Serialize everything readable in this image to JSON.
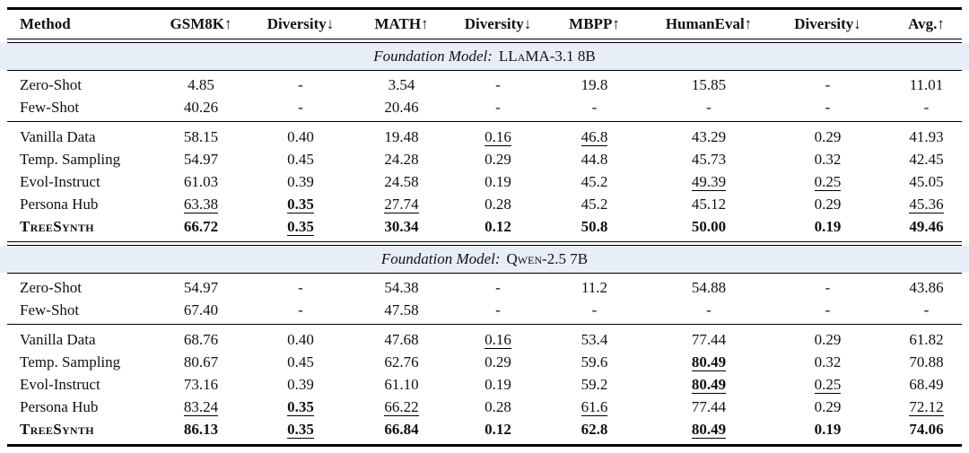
{
  "colors": {
    "band_bg": "#e8eef8",
    "rule": "#000000",
    "text": "#111111"
  },
  "table": {
    "columns": [
      "Method",
      "GSM8K↑",
      "Diversity↓",
      "MATH↑",
      "Diversity↓",
      "MBPP↑",
      "HumanEval↑",
      "Diversity↓",
      "Avg.↑"
    ],
    "sections": [
      {
        "banner_prefix": "Foundation Model:",
        "banner_model": "LLaMA-3.1 8B",
        "baseline_rows": [
          {
            "label": "Zero-Shot",
            "label_sc": false,
            "cells": [
              [
                "4.85",
                ""
              ],
              [
                "-",
                ""
              ],
              [
                "3.54",
                ""
              ],
              [
                "-",
                ""
              ],
              [
                "19.8",
                ""
              ],
              [
                "15.85",
                ""
              ],
              [
                "-",
                ""
              ],
              [
                "11.01",
                ""
              ]
            ]
          },
          {
            "label": "Few-Shot",
            "label_sc": false,
            "cells": [
              [
                "40.26",
                ""
              ],
              [
                "-",
                ""
              ],
              [
                "20.46",
                ""
              ],
              [
                "-",
                ""
              ],
              [
                "-",
                ""
              ],
              [
                "-",
                ""
              ],
              [
                "-",
                ""
              ],
              [
                "-",
                ""
              ]
            ]
          }
        ],
        "method_rows": [
          {
            "label": "Vanilla Data",
            "label_sc": false,
            "cells": [
              [
                "58.15",
                ""
              ],
              [
                "0.40",
                ""
              ],
              [
                "19.48",
                ""
              ],
              [
                "0.16",
                "u"
              ],
              [
                "46.8",
                "u"
              ],
              [
                "43.29",
                ""
              ],
              [
                "0.29",
                ""
              ],
              [
                "41.93",
                ""
              ]
            ]
          },
          {
            "label": "Temp. Sampling",
            "label_sc": false,
            "cells": [
              [
                "54.97",
                ""
              ],
              [
                "0.45",
                ""
              ],
              [
                "24.28",
                ""
              ],
              [
                "0.29",
                ""
              ],
              [
                "44.8",
                ""
              ],
              [
                "45.73",
                ""
              ],
              [
                "0.32",
                ""
              ],
              [
                "42.45",
                ""
              ]
            ]
          },
          {
            "label": "Evol-Instruct",
            "label_sc": false,
            "cells": [
              [
                "61.03",
                ""
              ],
              [
                "0.39",
                ""
              ],
              [
                "24.58",
                ""
              ],
              [
                "0.19",
                ""
              ],
              [
                "45.2",
                ""
              ],
              [
                "49.39",
                "u"
              ],
              [
                "0.25",
                "u"
              ],
              [
                "45.05",
                ""
              ]
            ]
          },
          {
            "label": "Persona Hub",
            "label_sc": false,
            "cells": [
              [
                "63.38",
                "u"
              ],
              [
                "0.35",
                "bu"
              ],
              [
                "27.74",
                "u"
              ],
              [
                "0.28",
                ""
              ],
              [
                "45.2",
                ""
              ],
              [
                "45.12",
                ""
              ],
              [
                "0.29",
                ""
              ],
              [
                "45.36",
                "u"
              ]
            ]
          },
          {
            "label": "TreeSynth",
            "label_sc": true,
            "cells": [
              [
                "66.72",
                "b"
              ],
              [
                "0.35",
                "bu"
              ],
              [
                "30.34",
                "b"
              ],
              [
                "0.12",
                "b"
              ],
              [
                "50.8",
                "b"
              ],
              [
                "50.00",
                "b"
              ],
              [
                "0.19",
                "b"
              ],
              [
                "49.46",
                "b"
              ]
            ]
          }
        ]
      },
      {
        "banner_prefix": "Foundation Model:",
        "banner_model": "Qwen-2.5 7B",
        "baseline_rows": [
          {
            "label": "Zero-Shot",
            "label_sc": false,
            "cells": [
              [
                "54.97",
                ""
              ],
              [
                "-",
                ""
              ],
              [
                "54.38",
                ""
              ],
              [
                "-",
                ""
              ],
              [
                "11.2",
                ""
              ],
              [
                "54.88",
                ""
              ],
              [
                "-",
                ""
              ],
              [
                "43.86",
                ""
              ]
            ]
          },
          {
            "label": "Few-Shot",
            "label_sc": false,
            "cells": [
              [
                "67.40",
                ""
              ],
              [
                "-",
                ""
              ],
              [
                "47.58",
                ""
              ],
              [
                "-",
                ""
              ],
              [
                "-",
                ""
              ],
              [
                "-",
                ""
              ],
              [
                "-",
                ""
              ],
              [
                "-",
                ""
              ]
            ]
          }
        ],
        "method_rows": [
          {
            "label": "Vanilla Data",
            "label_sc": false,
            "cells": [
              [
                "68.76",
                ""
              ],
              [
                "0.40",
                ""
              ],
              [
                "47.68",
                ""
              ],
              [
                "0.16",
                "u"
              ],
              [
                "53.4",
                ""
              ],
              [
                "77.44",
                ""
              ],
              [
                "0.29",
                ""
              ],
              [
                "61.82",
                ""
              ]
            ]
          },
          {
            "label": "Temp. Sampling",
            "label_sc": false,
            "cells": [
              [
                "80.67",
                ""
              ],
              [
                "0.45",
                ""
              ],
              [
                "62.76",
                ""
              ],
              [
                "0.29",
                ""
              ],
              [
                "59.6",
                ""
              ],
              [
                "80.49",
                "bu"
              ],
              [
                "0.32",
                ""
              ],
              [
                "70.88",
                ""
              ]
            ]
          },
          {
            "label": "Evol-Instruct",
            "label_sc": false,
            "cells": [
              [
                "73.16",
                ""
              ],
              [
                "0.39",
                ""
              ],
              [
                "61.10",
                ""
              ],
              [
                "0.19",
                ""
              ],
              [
                "59.2",
                ""
              ],
              [
                "80.49",
                "bu"
              ],
              [
                "0.25",
                "u"
              ],
              [
                "68.49",
                ""
              ]
            ]
          },
          {
            "label": "Persona Hub",
            "label_sc": false,
            "cells": [
              [
                "83.24",
                "u"
              ],
              [
                "0.35",
                "bu"
              ],
              [
                "66.22",
                "u"
              ],
              [
                "0.28",
                ""
              ],
              [
                "61.6",
                "u"
              ],
              [
                "77.44",
                ""
              ],
              [
                "0.29",
                ""
              ],
              [
                "72.12",
                "u"
              ]
            ]
          },
          {
            "label": "TreeSynth",
            "label_sc": true,
            "cells": [
              [
                "86.13",
                "b"
              ],
              [
                "0.35",
                "bu"
              ],
              [
                "66.84",
                "b"
              ],
              [
                "0.12",
                "b"
              ],
              [
                "62.8",
                "b"
              ],
              [
                "80.49",
                "bu"
              ],
              [
                "0.19",
                "b"
              ],
              [
                "74.06",
                "b"
              ]
            ]
          }
        ]
      }
    ]
  }
}
